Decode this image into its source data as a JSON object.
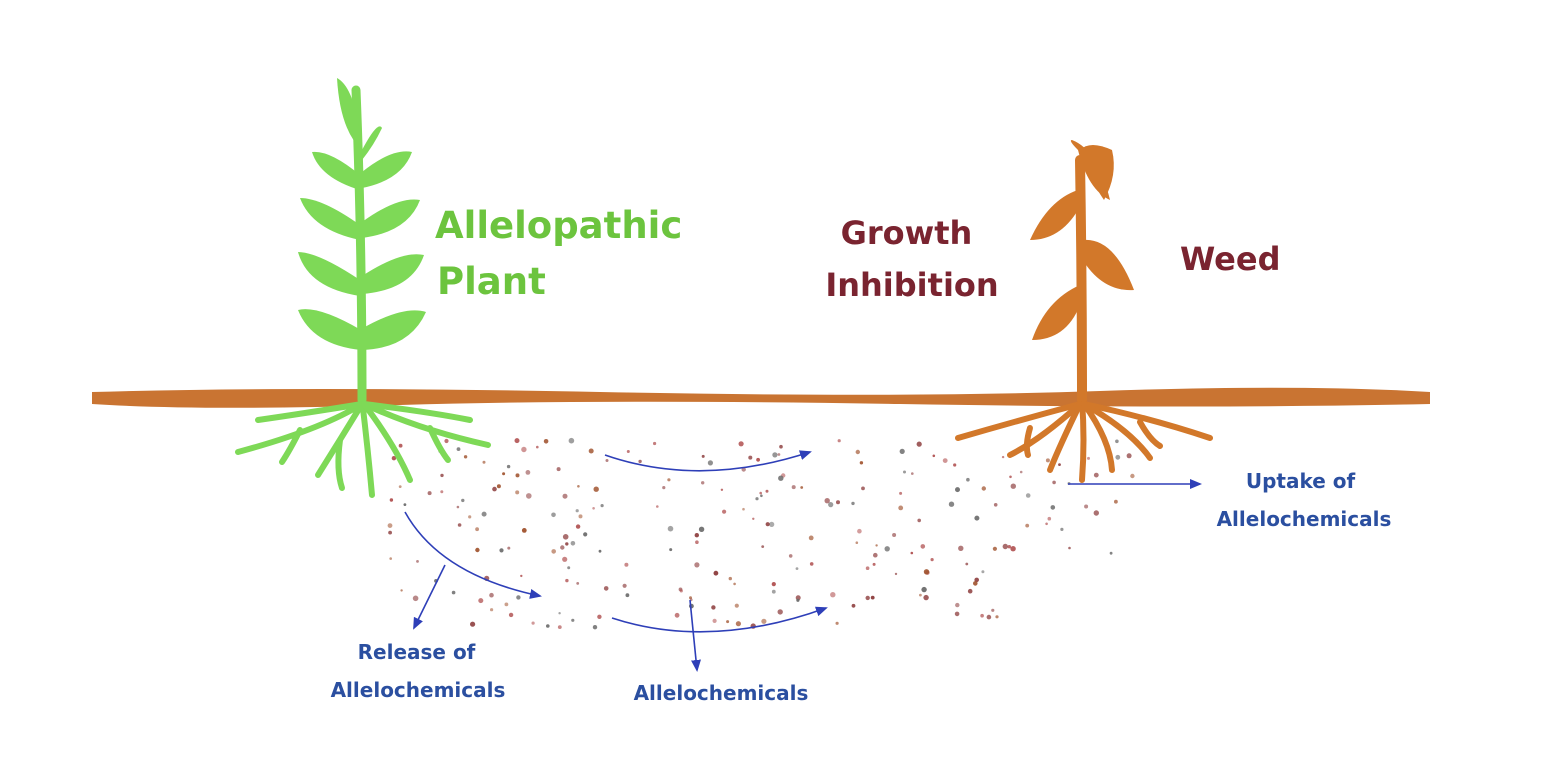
{
  "labels": {
    "allelopathic_plant": [
      "Allelopathic",
      "Plant"
    ],
    "growth_inhibition": [
      "Growth",
      "Inhibition"
    ],
    "weed": "Weed",
    "uptake": [
      "Uptake of",
      "Allelochemicals"
    ],
    "release": [
      "Release of",
      "Allelochemicals"
    ],
    "allelochemicals": "Allelochemicals"
  },
  "colors": {
    "allelopathic_plant": "#7ed957",
    "weed": "#d2782a",
    "soil_line": "#c97432",
    "arrows": "#2e3fb8",
    "particles": "#8b3a3a",
    "label_green": "#6cc43e",
    "label_red": "#7a2430",
    "label_blue": "#2b4fa0"
  }
}
